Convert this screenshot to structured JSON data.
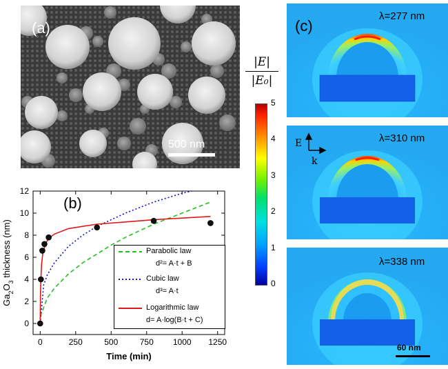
{
  "panel_a": {
    "label": "(a)",
    "scale_bar": "500 nm"
  },
  "panel_b": {
    "label": "(b)",
    "legend": {
      "parabolic": {
        "name": "Parabolic law",
        "eq": "d²= A·t + B"
      },
      "cubic": {
        "name": "Cubic law",
        "eq": "d³= A·t"
      },
      "log": {
        "name": "Logarithmic law",
        "eq": "d= A·log(B·t + C)"
      }
    }
  },
  "panel_c": {
    "label": "(c)",
    "colorbar_label_num": "|E|",
    "colorbar_label_den": "|E₀|",
    "colorbar_ticks": [
      "5",
      "4",
      "3",
      "2",
      "1",
      "0"
    ],
    "maps": [
      {
        "wavelength": "λ=277 nm"
      },
      {
        "wavelength": "λ=310 nm"
      },
      {
        "wavelength": "λ=338 nm"
      }
    ],
    "axis_E": "E",
    "axis_k": "k",
    "scale_bar": "60 nm"
  },
  "chart_data": {
    "type": "scatter",
    "xlabel": "Time (min)",
    "ylabel": "Ga2O3 thickness (nm)",
    "xlim": [
      -50,
      1300
    ],
    "ylim": [
      -1,
      12
    ],
    "xticks": [
      0,
      250,
      500,
      750,
      1000,
      1250
    ],
    "yticks": [
      0,
      2,
      4,
      6,
      8,
      10,
      12
    ],
    "grid": false,
    "legend_position": "bottom-right",
    "points": [
      {
        "x": 0,
        "y": 0
      },
      {
        "x": 5,
        "y": 4.0
      },
      {
        "x": 15,
        "y": 6.6
      },
      {
        "x": 30,
        "y": 7.2
      },
      {
        "x": 60,
        "y": 7.8
      },
      {
        "x": 400,
        "y": 8.7
      },
      {
        "x": 800,
        "y": 9.3
      },
      {
        "x": 1200,
        "y": 9.1
      }
    ],
    "series": [
      {
        "name": "Parabolic law",
        "style": "dashed",
        "color": "#22c022",
        "x": [
          0,
          50,
          100,
          200,
          300,
          400,
          500,
          600,
          700,
          800,
          900,
          1000,
          1100,
          1200
        ],
        "y": [
          0.6,
          2.3,
          3.2,
          4.5,
          5.5,
          6.3,
          7.1,
          7.8,
          8.4,
          9.0,
          9.5,
          10.0,
          10.5,
          11.0
        ]
      },
      {
        "name": "Cubic law",
        "style": "dotted",
        "color": "#1010d0",
        "x": [
          0,
          25,
          50,
          100,
          200,
          300,
          400,
          500,
          600,
          700,
          800,
          900,
          1000,
          1100,
          1200
        ],
        "y": [
          0,
          3.5,
          4.4,
          5.5,
          7.0,
          8.0,
          8.8,
          9.4,
          10.0,
          10.5,
          11.0,
          11.4,
          11.8,
          12.1,
          12.4
        ]
      },
      {
        "name": "Logarithmic law",
        "style": "solid",
        "color": "#e01818",
        "x": [
          0,
          2,
          5,
          10,
          20,
          40,
          60,
          100,
          200,
          400,
          600,
          800,
          1000,
          1200
        ],
        "y": [
          0,
          2.5,
          4.0,
          5.4,
          6.5,
          7.3,
          7.7,
          8.1,
          8.6,
          9.0,
          9.2,
          9.4,
          9.55,
          9.7
        ]
      }
    ]
  }
}
